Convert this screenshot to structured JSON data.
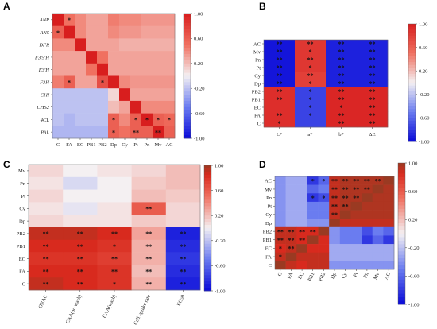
{
  "chart_data": [
    {
      "type": "heatmap",
      "panel_label": "A",
      "rows": [
        "ANR",
        "ANS",
        "DFR",
        "F3'5'H",
        "F3'H",
        "F3H",
        "CHI",
        "CHS2",
        "4CL",
        "PAL"
      ],
      "cols": [
        "C",
        "FA",
        "EC",
        "PB1",
        "PB2",
        "Dp",
        "Cy",
        "Pt",
        "Pn",
        "Mv",
        "AC"
      ],
      "values": [
        [
          1.0,
          0.5,
          0.4,
          0.3,
          0.3,
          0.45,
          0.4,
          0.4,
          0.35,
          0.35,
          0.35
        ],
        [
          0.6,
          1.0,
          0.4,
          0.3,
          0.3,
          0.4,
          0.35,
          0.35,
          0.3,
          0.3,
          0.3
        ],
        [
          0.4,
          0.4,
          1.0,
          0.3,
          0.3,
          0.3,
          0.25,
          0.25,
          0.25,
          0.25,
          0.25
        ],
        [
          0.3,
          0.3,
          0.3,
          1.0,
          0.5,
          0.3,
          0.3,
          0.3,
          0.3,
          0.3,
          0.3
        ],
        [
          0.3,
          0.3,
          0.3,
          0.5,
          1.0,
          0.3,
          0.3,
          0.3,
          0.3,
          0.3,
          0.3
        ],
        [
          0.45,
          0.6,
          0.3,
          0.3,
          0.7,
          1.0,
          0.4,
          0.35,
          0.35,
          0.35,
          0.35
        ],
        [
          -0.2,
          -0.2,
          -0.2,
          -0.2,
          -0.2,
          0.1,
          1.0,
          0.3,
          0.3,
          0.3,
          0.3
        ],
        [
          -0.2,
          -0.2,
          -0.2,
          -0.2,
          -0.2,
          0.2,
          0.3,
          1.0,
          0.4,
          0.4,
          0.4
        ],
        [
          -0.2,
          -0.25,
          -0.2,
          -0.2,
          -0.2,
          0.6,
          0.4,
          0.6,
          1.0,
          0.6,
          0.55
        ],
        [
          -0.25,
          -0.25,
          -0.25,
          -0.25,
          -0.25,
          0.6,
          0.5,
          0.6,
          0.6,
          1.0,
          0.6
        ]
      ],
      "stars": [
        [
          "",
          "*",
          "",
          "",
          "",
          "",
          "",
          "",
          "",
          "",
          ""
        ],
        [
          "*",
          "",
          "",
          "",
          "",
          "",
          "",
          "",
          "",
          "",
          ""
        ],
        [
          "",
          "",
          "",
          "",
          "",
          "",
          "",
          "",
          "",
          "",
          ""
        ],
        [
          "",
          "",
          "",
          "",
          "",
          "",
          "",
          "",
          "",
          "",
          ""
        ],
        [
          "",
          "",
          "",
          "",
          "",
          "",
          "",
          "",
          "",
          "",
          ""
        ],
        [
          "",
          "*",
          "",
          "",
          "*",
          "",
          "",
          "",
          "",
          "",
          ""
        ],
        [
          "",
          "",
          "",
          "",
          "",
          "",
          "",
          "",
          "",
          "",
          ""
        ],
        [
          "",
          "",
          "",
          "",
          "",
          "",
          "",
          "",
          "",
          "",
          ""
        ],
        [
          "",
          "",
          "",
          "",
          "",
          "*",
          "",
          "*",
          "*",
          "*",
          "*"
        ],
        [
          "",
          "",
          "",
          "",
          "",
          "*",
          "",
          "**",
          "",
          "**",
          ""
        ]
      ],
      "italic_rows": true,
      "colorbar_ticks": [
        "1.00",
        "0.60",
        "0.20",
        "-0.20",
        "-0.60",
        "-1.00"
      ],
      "colormap": "bwr"
    },
    {
      "type": "heatmap",
      "panel_label": "B",
      "rows": [
        "AC",
        "Mv",
        "Pn",
        "Pt",
        "Cy",
        "Dp",
        "PB2",
        "PB1",
        "EC",
        "FA",
        "C"
      ],
      "cols": [
        "L*",
        "a*",
        "b*",
        "ΔE"
      ],
      "values": [
        [
          -0.95,
          0.85,
          -0.9,
          -0.9
        ],
        [
          -0.95,
          0.85,
          -0.9,
          -0.9
        ],
        [
          -0.95,
          0.85,
          -0.9,
          -0.9
        ],
        [
          -0.95,
          0.85,
          -0.9,
          -0.9
        ],
        [
          -0.95,
          0.8,
          -0.9,
          -0.9
        ],
        [
          -0.95,
          0.8,
          -0.9,
          -0.9
        ],
        [
          0.9,
          -0.75,
          0.95,
          0.95
        ],
        [
          0.9,
          -0.75,
          0.95,
          0.95
        ],
        [
          0.9,
          -0.75,
          0.95,
          0.95
        ],
        [
          0.9,
          -0.75,
          0.95,
          0.95
        ],
        [
          0.9,
          -0.75,
          0.95,
          0.95
        ]
      ],
      "stars": [
        [
          "**",
          "**",
          "**",
          "**"
        ],
        [
          "**",
          "*",
          "**",
          "**"
        ],
        [
          "**",
          "**",
          "**",
          "**"
        ],
        [
          "**",
          "*",
          "**",
          "**"
        ],
        [
          "**",
          "**",
          "**",
          "**"
        ],
        [
          "**",
          "*",
          "**",
          "**"
        ],
        [
          "**",
          "*",
          "**",
          "**"
        ],
        [
          "**",
          "*",
          "**",
          "**"
        ],
        [
          "",
          "*",
          "*",
          "**"
        ],
        [
          "**",
          "*",
          "**",
          "**"
        ],
        [
          "*",
          "",
          "**",
          "**"
        ]
      ],
      "italic_rows": false,
      "colorbar_ticks": [
        "1.00",
        "0.60",
        "0.20",
        "-0.20",
        "-0.60",
        "-1.00"
      ],
      "colormap": "bwr"
    },
    {
      "type": "heatmap",
      "panel_label": "C",
      "rows": [
        "Mv",
        "Pn",
        "Pt",
        "Cy",
        "Dp",
        "PB2",
        "PB1",
        "EC",
        "FA",
        "C"
      ],
      "cols": [
        "ORAC",
        "CAA(no wash)",
        "CAA(wash)",
        "Cell uptake rate",
        "EC50"
      ],
      "values": [
        [
          0.1,
          0.0,
          0.05,
          0.1,
          0.2
        ],
        [
          0.05,
          -0.1,
          0.0,
          0.15,
          0.2
        ],
        [
          0.1,
          0.0,
          0.0,
          0.2,
          0.15
        ],
        [
          0.05,
          -0.05,
          0.05,
          0.6,
          0.1
        ],
        [
          0.1,
          0.05,
          0.05,
          0.15,
          0.1
        ],
        [
          0.9,
          0.9,
          0.85,
          0.3,
          -0.9
        ],
        [
          0.85,
          0.85,
          0.8,
          0.25,
          -0.85
        ],
        [
          0.8,
          0.8,
          0.75,
          0.25,
          -0.8
        ],
        [
          0.85,
          0.85,
          0.8,
          0.2,
          -0.85
        ],
        [
          0.9,
          0.85,
          0.8,
          0.25,
          -0.9
        ]
      ],
      "stars": [
        [
          "",
          "",
          "",
          "",
          ""
        ],
        [
          "",
          "",
          "",
          "",
          ""
        ],
        [
          "",
          "",
          "",
          "",
          ""
        ],
        [
          "",
          "",
          "",
          "**",
          ""
        ],
        [
          "",
          "",
          "",
          "",
          ""
        ],
        [
          "**",
          "**",
          "**",
          "**",
          "**"
        ],
        [
          "**",
          "**",
          "*",
          "**",
          "**"
        ],
        [
          "**",
          "**",
          "**",
          "**",
          "**"
        ],
        [
          "**",
          "**",
          "**",
          "**",
          "**"
        ],
        [
          "**",
          "**",
          "*",
          "**",
          "**"
        ]
      ],
      "italic_rows": false,
      "colorbar_ticks": [
        "1.00",
        "0.60",
        "0.20",
        "-0.20",
        "-0.60",
        "-1.00"
      ],
      "colormap": "bwr_brown_top"
    },
    {
      "type": "heatmap",
      "panel_label": "D",
      "rows": [
        "AC",
        "Mv",
        "Pn",
        "Pt",
        "Cy",
        "Dp",
        "PB2",
        "PB1",
        "EC",
        "FA",
        "C"
      ],
      "cols": [
        "C",
        "FA",
        "EC",
        "PB1",
        "PB2",
        "Dp",
        "Cy",
        "Pt",
        "Pn",
        "Mv",
        "AC"
      ],
      "values": [
        [
          -0.4,
          -0.3,
          -0.3,
          -0.8,
          -0.6,
          0.9,
          0.95,
          0.95,
          0.95,
          0.95,
          1.0
        ],
        [
          -0.4,
          -0.3,
          -0.3,
          -0.6,
          -0.5,
          0.9,
          0.95,
          0.95,
          0.95,
          1.0,
          0.95
        ],
        [
          -0.4,
          -0.3,
          -0.3,
          -0.8,
          -0.7,
          0.9,
          0.95,
          0.95,
          1.0,
          0.95,
          0.95
        ],
        [
          -0.4,
          -0.3,
          -0.3,
          -0.5,
          -0.5,
          0.9,
          0.95,
          1.0,
          0.95,
          0.95,
          0.95
        ],
        [
          -0.4,
          -0.3,
          -0.3,
          -0.5,
          -0.5,
          0.9,
          1.0,
          0.95,
          0.95,
          0.95,
          0.95
        ],
        [
          -0.4,
          -0.3,
          -0.3,
          -0.4,
          -0.4,
          1.0,
          0.9,
          0.9,
          0.9,
          0.9,
          0.9
        ],
        [
          0.9,
          0.9,
          0.85,
          0.85,
          1.0,
          -0.4,
          -0.5,
          -0.5,
          -0.7,
          -0.5,
          -0.6
        ],
        [
          0.9,
          0.9,
          0.85,
          1.0,
          0.85,
          -0.4,
          -0.5,
          -0.5,
          -0.8,
          -0.6,
          -0.8
        ],
        [
          0.85,
          0.9,
          1.0,
          0.85,
          0.85,
          -0.3,
          -0.3,
          -0.3,
          -0.3,
          -0.3,
          -0.3
        ],
        [
          0.9,
          1.0,
          0.9,
          0.9,
          0.9,
          -0.3,
          -0.3,
          -0.3,
          -0.3,
          -0.3,
          -0.3
        ],
        [
          1.0,
          0.9,
          0.85,
          0.9,
          0.9,
          -0.4,
          -0.4,
          -0.4,
          -0.4,
          -0.4,
          -0.4
        ]
      ],
      "stars": [
        [
          "",
          "",
          "",
          "*",
          "*",
          "**",
          "**",
          "**",
          "**",
          "**",
          ""
        ],
        [
          "",
          "",
          "",
          "",
          "",
          "**",
          "**",
          "**",
          "**",
          "",
          ""
        ],
        [
          "",
          "",
          "",
          "*",
          "*",
          "**",
          "**",
          "**",
          "",
          "",
          " "
        ],
        [
          "",
          "",
          "",
          "",
          "",
          "**",
          "**",
          "",
          "",
          "",
          ""
        ],
        [
          "",
          "",
          "",
          "",
          "",
          "**",
          "",
          "",
          "",
          "",
          ""
        ],
        [
          "",
          "",
          "",
          "",
          "",
          "",
          "",
          "",
          "",
          "",
          ""
        ],
        [
          "**",
          "**",
          "**",
          "**",
          "",
          "",
          "",
          "",
          "",
          "",
          ""
        ],
        [
          "**",
          "**",
          "**",
          "",
          "",
          "",
          "",
          "",
          "",
          "",
          ""
        ],
        [
          "*",
          "**",
          "",
          "",
          "",
          "",
          "",
          "",
          "",
          "",
          ""
        ],
        [
          "*",
          "",
          "",
          "",
          "",
          "",
          "",
          "",
          "",
          "",
          ""
        ],
        [
          "",
          "",
          "",
          "",
          "",
          "",
          "",
          "",
          "",
          "",
          ""
        ]
      ],
      "italic_rows": false,
      "colorbar_ticks": [
        "1.00",
        "0.60",
        "0.20",
        "-0.20",
        "-0.60",
        "-1.00"
      ],
      "colormap": "bwr_brown_top"
    }
  ]
}
